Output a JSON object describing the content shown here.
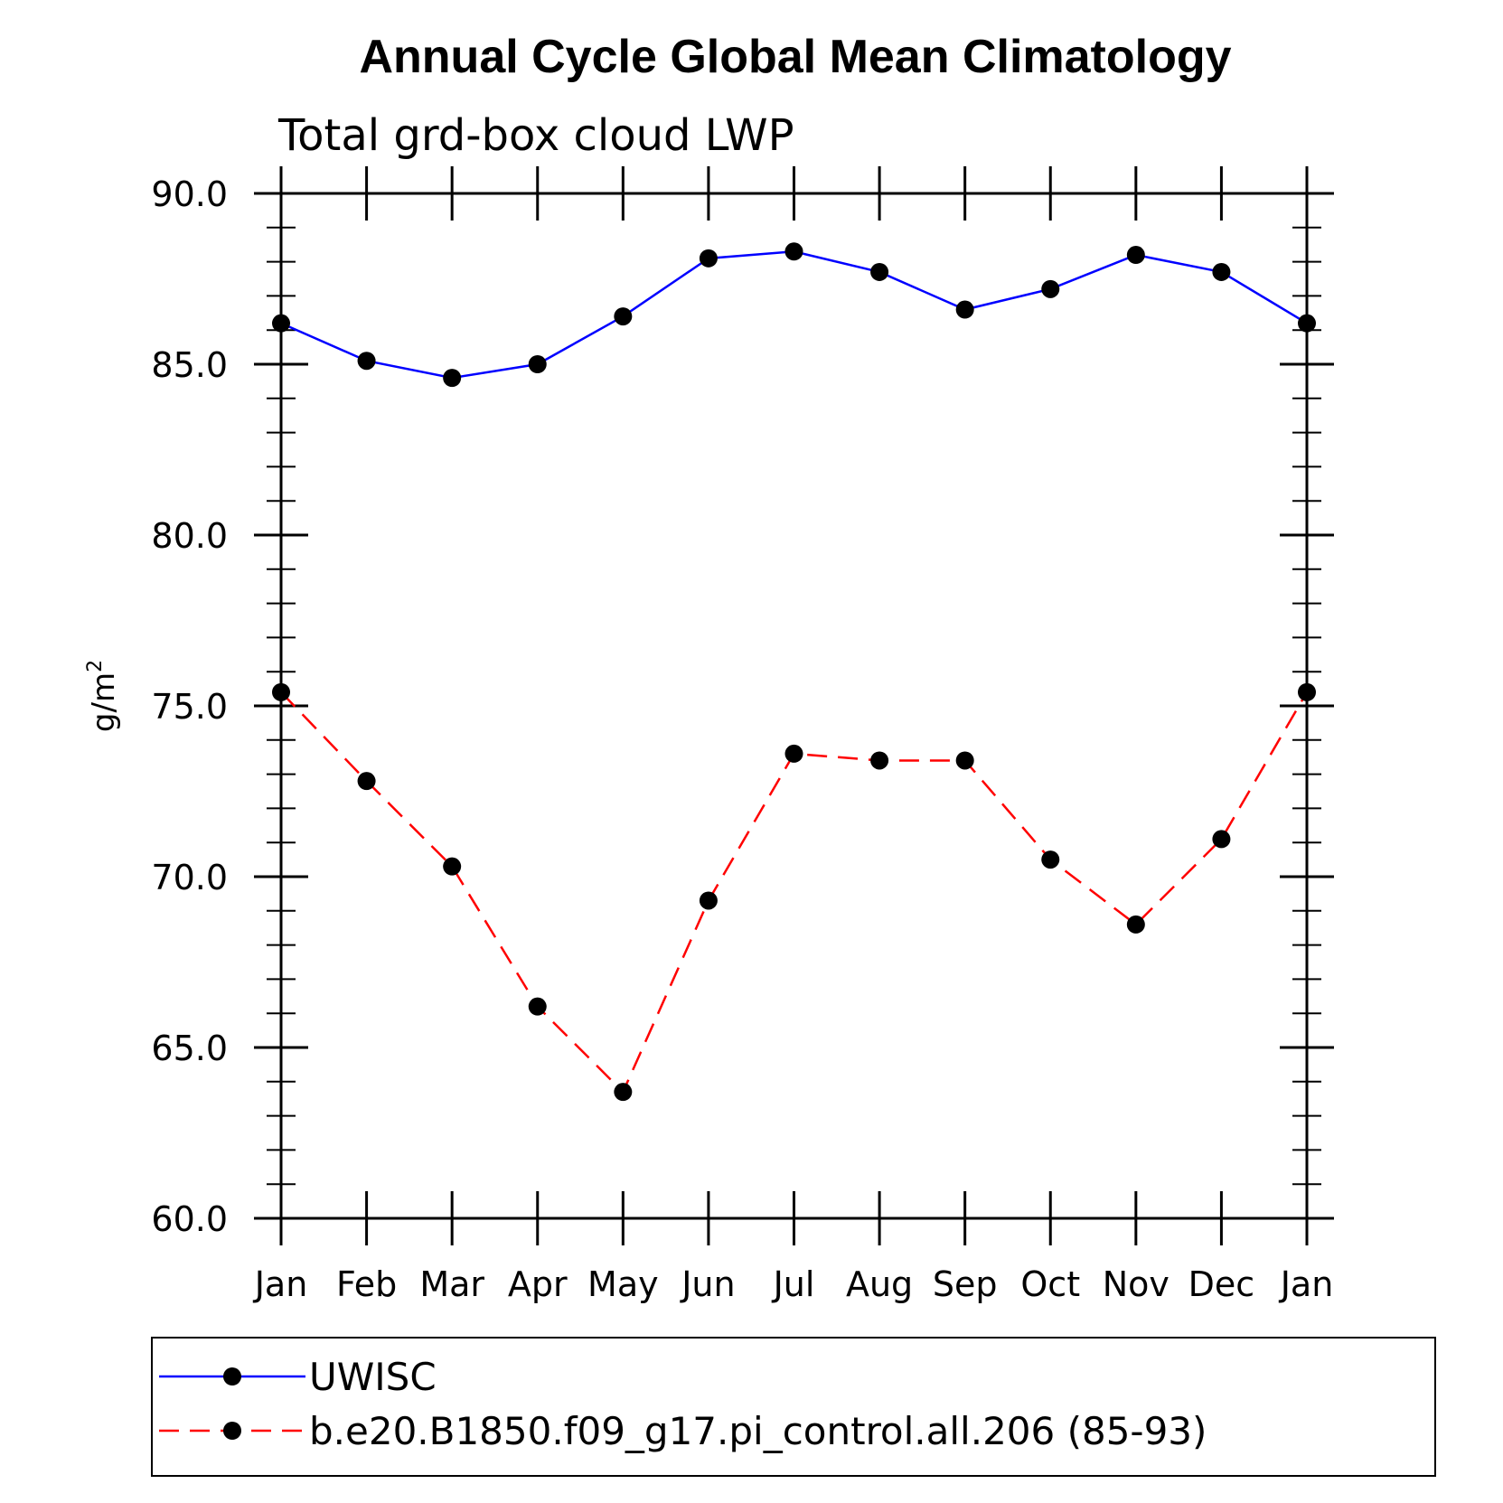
{
  "chart_data": {
    "type": "line",
    "title": "Annual Cycle Global Mean Climatology",
    "subtitle": "Total grd-box cloud LWP",
    "ylabel": "g/m",
    "ylabel_superscript": "2",
    "xlabel": "",
    "categories": [
      "Jan",
      "Feb",
      "Mar",
      "Apr",
      "May",
      "Jun",
      "Jul",
      "Aug",
      "Sep",
      "Oct",
      "Nov",
      "Dec",
      "Jan"
    ],
    "ylim": [
      60.0,
      90.0
    ],
    "yticks": [
      "60.0",
      "65.0",
      "70.0",
      "75.0",
      "80.0",
      "85.0",
      "90.0"
    ],
    "grid": false,
    "legend_position": "bottom",
    "series": [
      {
        "name": "UWISC",
        "color": "#0000ff",
        "dash": "solid",
        "marker": "filled-circle",
        "values": [
          86.2,
          85.1,
          84.6,
          85.0,
          86.4,
          88.1,
          88.3,
          87.7,
          86.6,
          87.2,
          88.2,
          87.7,
          86.2
        ]
      },
      {
        "name": "b.e20.B1850.f09_g17.pi_control.all.206 (85-93)",
        "color": "#ff0000",
        "dash": "dashed",
        "marker": "filled-circle",
        "values": [
          75.4,
          72.8,
          70.3,
          66.2,
          63.7,
          69.3,
          73.6,
          73.4,
          73.4,
          70.5,
          68.6,
          71.1,
          75.4
        ]
      }
    ]
  }
}
